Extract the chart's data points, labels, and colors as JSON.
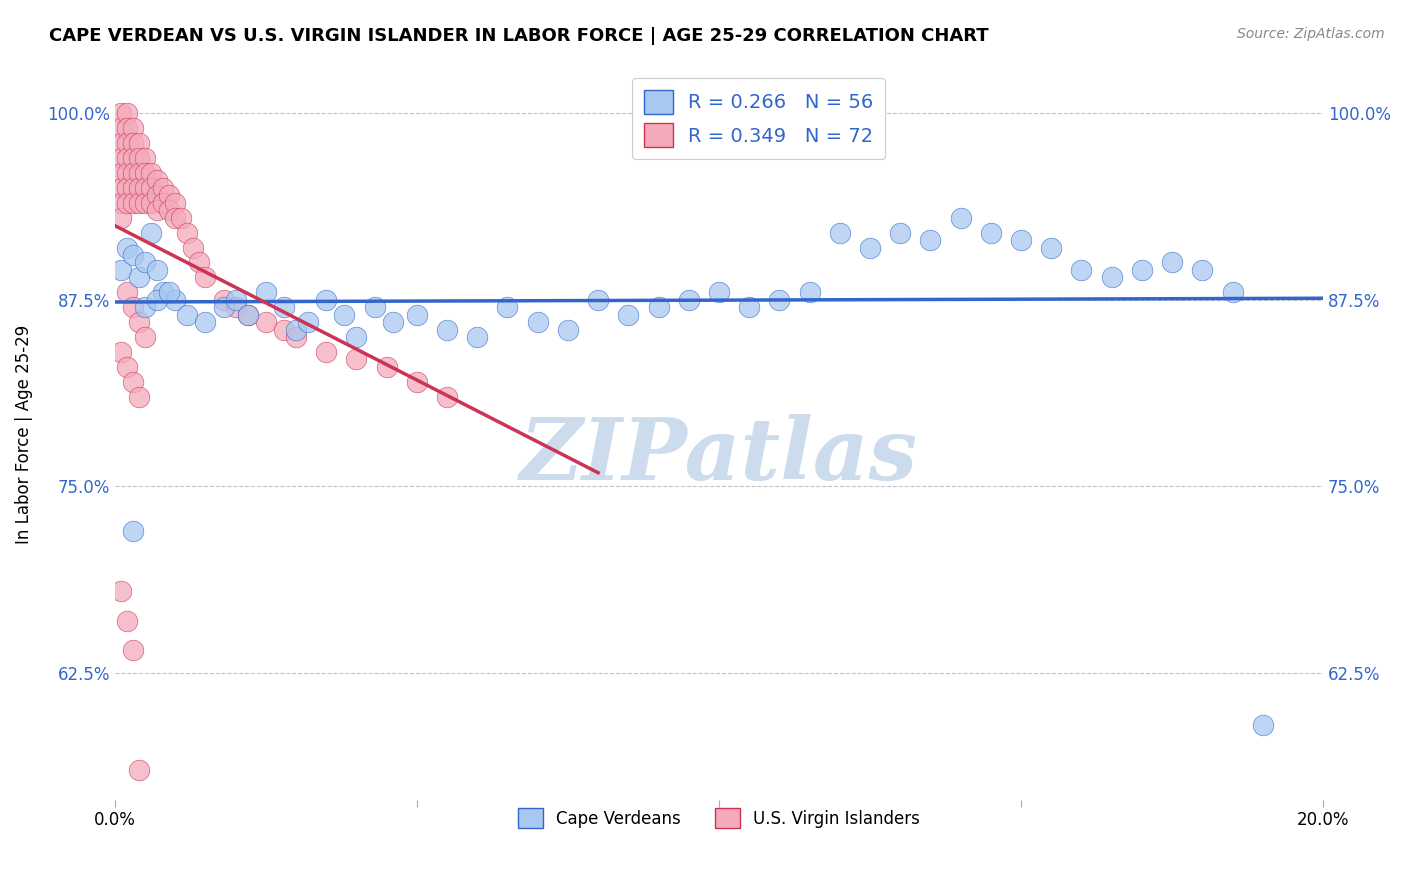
{
  "title": "CAPE VERDEAN VS U.S. VIRGIN ISLANDER IN LABOR FORCE | AGE 25-29 CORRELATION CHART",
  "source": "Source: ZipAtlas.com",
  "ylabel": "In Labor Force | Age 25-29",
  "xlim": [
    0.0,
    0.2
  ],
  "ylim": [
    0.54,
    1.03
  ],
  "xticks": [
    0.0,
    0.05,
    0.1,
    0.15,
    0.2
  ],
  "xticklabels": [
    "0.0%",
    "",
    "",
    "",
    "20.0%"
  ],
  "yticks": [
    0.625,
    0.75,
    0.875,
    1.0
  ],
  "yticklabels": [
    "62.5%",
    "75.0%",
    "87.5%",
    "100.0%"
  ],
  "blue_R": 0.266,
  "blue_N": 56,
  "pink_R": 0.349,
  "pink_N": 72,
  "blue_color": "#A8C8F0",
  "pink_color": "#F4AABB",
  "blue_line_color": "#3366CC",
  "pink_line_color": "#CC3355",
  "watermark": "ZIPatlas",
  "watermark_color": "#CCDCEC",
  "legend_label_blue": "Cape Verdeans",
  "legend_label_pink": "U.S. Virgin Islanders",
  "blue_scatter_x": [
    0.001,
    0.002,
    0.003,
    0.004,
    0.005,
    0.006,
    0.007,
    0.008,
    0.01,
    0.012,
    0.015,
    0.018,
    0.02,
    0.022,
    0.025,
    0.028,
    0.03,
    0.032,
    0.035,
    0.038,
    0.04,
    0.043,
    0.046,
    0.05,
    0.055,
    0.06,
    0.065,
    0.07,
    0.075,
    0.08,
    0.085,
    0.09,
    0.095,
    0.1,
    0.105,
    0.11,
    0.115,
    0.12,
    0.125,
    0.13,
    0.135,
    0.14,
    0.145,
    0.15,
    0.155,
    0.16,
    0.165,
    0.17,
    0.175,
    0.18,
    0.185,
    0.19,
    0.003,
    0.005,
    0.007,
    0.009
  ],
  "blue_scatter_y": [
    0.895,
    0.91,
    0.905,
    0.89,
    0.9,
    0.92,
    0.895,
    0.88,
    0.875,
    0.865,
    0.86,
    0.87,
    0.875,
    0.865,
    0.88,
    0.87,
    0.855,
    0.86,
    0.875,
    0.865,
    0.85,
    0.87,
    0.86,
    0.865,
    0.855,
    0.85,
    0.87,
    0.86,
    0.855,
    0.875,
    0.865,
    0.87,
    0.875,
    0.88,
    0.87,
    0.875,
    0.88,
    0.92,
    0.91,
    0.92,
    0.915,
    0.93,
    0.92,
    0.915,
    0.91,
    0.895,
    0.89,
    0.895,
    0.9,
    0.895,
    0.88,
    0.59,
    0.72,
    0.87,
    0.875,
    0.88
  ],
  "pink_scatter_x": [
    0.001,
    0.001,
    0.001,
    0.001,
    0.001,
    0.001,
    0.001,
    0.001,
    0.002,
    0.002,
    0.002,
    0.002,
    0.002,
    0.002,
    0.002,
    0.003,
    0.003,
    0.003,
    0.003,
    0.003,
    0.003,
    0.004,
    0.004,
    0.004,
    0.004,
    0.004,
    0.005,
    0.005,
    0.005,
    0.005,
    0.006,
    0.006,
    0.006,
    0.007,
    0.007,
    0.007,
    0.008,
    0.008,
    0.009,
    0.009,
    0.01,
    0.01,
    0.011,
    0.012,
    0.013,
    0.014,
    0.015,
    0.018,
    0.02,
    0.022,
    0.025,
    0.028,
    0.03,
    0.035,
    0.04,
    0.045,
    0.05,
    0.055,
    0.002,
    0.003,
    0.004,
    0.005,
    0.001,
    0.002,
    0.003,
    0.004,
    0.001,
    0.002,
    0.003,
    0.004
  ],
  "pink_scatter_y": [
    1.0,
    0.99,
    0.98,
    0.97,
    0.96,
    0.95,
    0.94,
    0.93,
    1.0,
    0.99,
    0.98,
    0.97,
    0.96,
    0.95,
    0.94,
    0.99,
    0.98,
    0.97,
    0.96,
    0.95,
    0.94,
    0.98,
    0.97,
    0.96,
    0.95,
    0.94,
    0.97,
    0.96,
    0.95,
    0.94,
    0.96,
    0.95,
    0.94,
    0.955,
    0.945,
    0.935,
    0.95,
    0.94,
    0.945,
    0.935,
    0.94,
    0.93,
    0.93,
    0.92,
    0.91,
    0.9,
    0.89,
    0.875,
    0.87,
    0.865,
    0.86,
    0.855,
    0.85,
    0.84,
    0.835,
    0.83,
    0.82,
    0.81,
    0.88,
    0.87,
    0.86,
    0.85,
    0.84,
    0.83,
    0.82,
    0.81,
    0.68,
    0.66,
    0.64,
    0.56
  ]
}
